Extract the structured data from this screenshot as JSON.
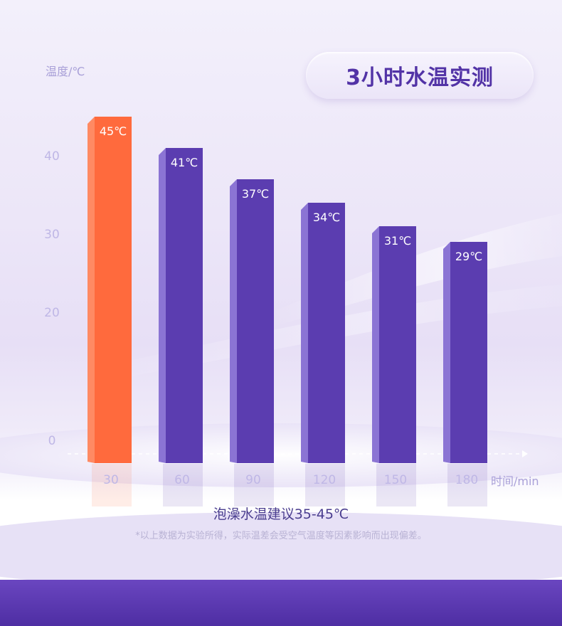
{
  "header": {
    "title": "3小时水温实测"
  },
  "chart_data": {
    "type": "bar",
    "categories": [
      "30",
      "60",
      "90",
      "120",
      "150",
      "180"
    ],
    "values": [
      45,
      41,
      37,
      34,
      31,
      29
    ],
    "data_labels": [
      "45℃",
      "41℃",
      "37℃",
      "34℃",
      "31℃",
      "29℃"
    ],
    "ylabel": "温度/℃",
    "xlabel": "时间/min",
    "yticks": [
      "0",
      "20",
      "30",
      "40"
    ],
    "ylim": [
      0,
      45
    ],
    "grid": false,
    "bar_colors": [
      "#ff6a3d",
      "#5b3db0",
      "#5b3db0",
      "#5b3db0",
      "#5b3db0",
      "#5b3db0"
    ]
  },
  "footer": {
    "recommendation": "泡澡水温建议35-45℃",
    "note": "*以上数据为实验所得，实际温差会受空气温度等因素影响而出现偏差。"
  }
}
